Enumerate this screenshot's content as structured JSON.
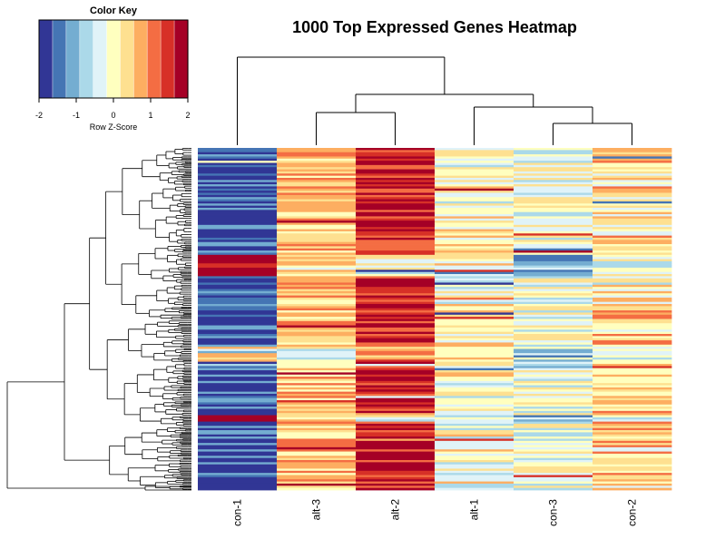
{
  "chart_data": {
    "type": "heatmap",
    "title": "1000 Top Expressed Genes Heatmap",
    "columns": [
      "con-1",
      "alt-3",
      "alt-2",
      "alt-1",
      "con-3",
      "con-2"
    ],
    "n_rows": 1000,
    "column_mean_zscore": [
      -1.6,
      0.6,
      1.7,
      0.1,
      -0.1,
      0.3
    ],
    "row_clusters": [
      {
        "columns_pattern": [
          -1.7,
          0.6,
          1.6,
          0.0,
          -0.2,
          0.4
        ],
        "share": 0.82
      },
      {
        "columns_pattern": [
          2.0,
          0.4,
          -0.1,
          -0.1,
          -0.9,
          -0.3
        ],
        "share": 0.1
      },
      {
        "columns_pattern": [
          0.3,
          -0.2,
          1.0,
          0.4,
          -0.6,
          -0.5
        ],
        "share": 0.08
      }
    ],
    "column_dendrogram": [
      [
        "con-1",
        [
          "alt-3",
          "alt-2"
        ],
        [
          "alt-1",
          [
            "con-3",
            "con-2"
          ]
        ]
      ]
    ],
    "color_key": {
      "title": "Color Key",
      "xlabel": "Row Z-Score",
      "ticks": [
        "-2",
        "-1",
        "0",
        "1",
        "2"
      ],
      "range": [
        -2,
        2
      ],
      "colors": [
        "#313695",
        "#4575b4",
        "#74add1",
        "#abd9e9",
        "#e0f3f8",
        "#ffffbf",
        "#fee090",
        "#fdae61",
        "#f46d43",
        "#d73027",
        "#a50026"
      ]
    }
  }
}
